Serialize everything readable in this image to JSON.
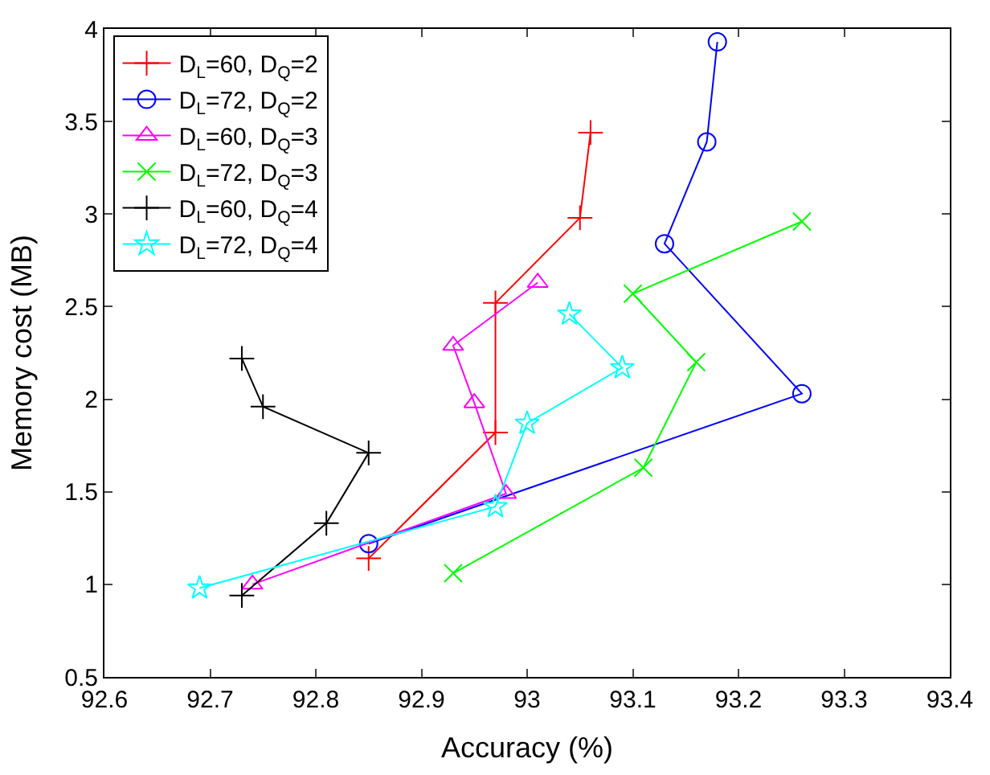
{
  "chart_data": {
    "type": "line",
    "xlabel": "Accuracy (%)",
    "ylabel": "Memory cost (MB)",
    "xlim": [
      92.6,
      93.4
    ],
    "xticks": [
      92.6,
      92.7,
      92.8,
      92.9,
      93,
      93.1,
      93.2,
      93.3,
      93.4
    ],
    "ylim": [
      0.5,
      4
    ],
    "yticks": [
      0.5,
      1,
      1.5,
      2,
      2.5,
      3,
      3.5,
      4
    ],
    "legend": "top left",
    "line_style": "solid",
    "series": [
      {
        "name": "D$_{L}$=60, D$_{Q}$=2",
        "color": "#ff0000",
        "marker": "cross",
        "x": [
          92.85,
          92.97,
          92.97,
          93.05,
          93.06
        ],
        "values": [
          1.14,
          1.82,
          2.52,
          2.98,
          3.44
        ]
      },
      {
        "name": "D$_{L}$=72, D$_{Q}$=2",
        "color": "#0000ff",
        "marker": "circle",
        "x": [
          92.85,
          93.26,
          93.13,
          93.17,
          93.18
        ],
        "values": [
          1.22,
          2.03,
          2.84,
          3.39,
          3.93
        ]
      },
      {
        "name": "D$_{L}$=60, D$_{Q}$=3",
        "color": "#ff00ff",
        "marker": "triangle",
        "x": [
          92.74,
          92.98,
          92.95,
          92.93,
          93.01
        ],
        "values": [
          1.0,
          1.49,
          1.98,
          2.29,
          2.63
        ]
      },
      {
        "name": "D$_{L}$=72, D$_{Q}$=3",
        "color": "#00ff00",
        "marker": "x",
        "x": [
          92.93,
          93.11,
          93.16,
          93.1,
          93.26
        ],
        "values": [
          1.06,
          1.63,
          2.2,
          2.57,
          2.96
        ]
      },
      {
        "name": "D$_{L}$=60, D$_{Q}$=4",
        "color": "#000000",
        "marker": "cross",
        "x": [
          92.73,
          92.81,
          92.85,
          92.75,
          92.73
        ],
        "values": [
          0.94,
          1.33,
          1.71,
          1.96,
          2.22
        ]
      },
      {
        "name": "D$_{L}$=72, D$_{Q}$=4",
        "color": "#00ffff",
        "marker": "star",
        "x": [
          92.69,
          92.97,
          93.0,
          93.09,
          93.04
        ],
        "values": [
          0.98,
          1.42,
          1.87,
          2.17,
          2.46
        ]
      }
    ]
  }
}
